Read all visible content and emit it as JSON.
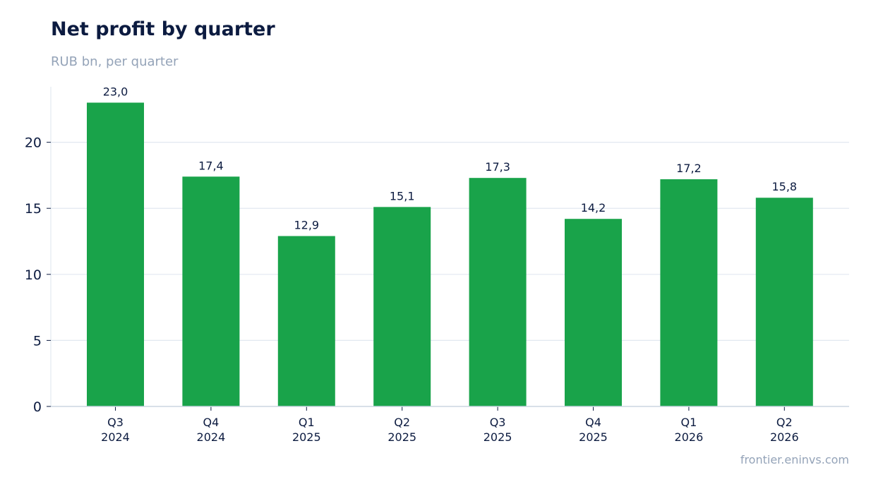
{
  "header": {
    "title": "Net profit by quarter",
    "subtitle": "RUB bn, per quarter"
  },
  "footer": {
    "source": "frontier.eninvs.com"
  },
  "colors": {
    "bar": "#19a34a",
    "grid": "#e2e8f0",
    "axis": "#cbd5e1",
    "text": "#0c1b40",
    "muted": "#94a3b8"
  },
  "chart_data": {
    "type": "bar",
    "title": "Net profit by quarter",
    "subtitle": "RUB bn, per quarter",
    "xlabel": "",
    "ylabel": "",
    "categories": [
      [
        "Q3",
        "2024"
      ],
      [
        "Q4",
        "2024"
      ],
      [
        "Q1",
        "2025"
      ],
      [
        "Q2",
        "2025"
      ],
      [
        "Q3",
        "2025"
      ],
      [
        "Q4",
        "2025"
      ],
      [
        "Q1",
        "2026"
      ],
      [
        "Q2",
        "2026"
      ]
    ],
    "values": [
      23.0,
      17.4,
      12.9,
      15.1,
      17.3,
      14.2,
      17.2,
      15.8
    ],
    "data_labels": [
      "23,0",
      "17,4",
      "12,9",
      "15,1",
      "17,3",
      "14,2",
      "17,2",
      "15,8"
    ],
    "yticks": [
      0,
      5,
      10,
      15,
      20
    ],
    "ylim": [
      0,
      24.2
    ],
    "grid": "horizontal",
    "legend": "none"
  }
}
